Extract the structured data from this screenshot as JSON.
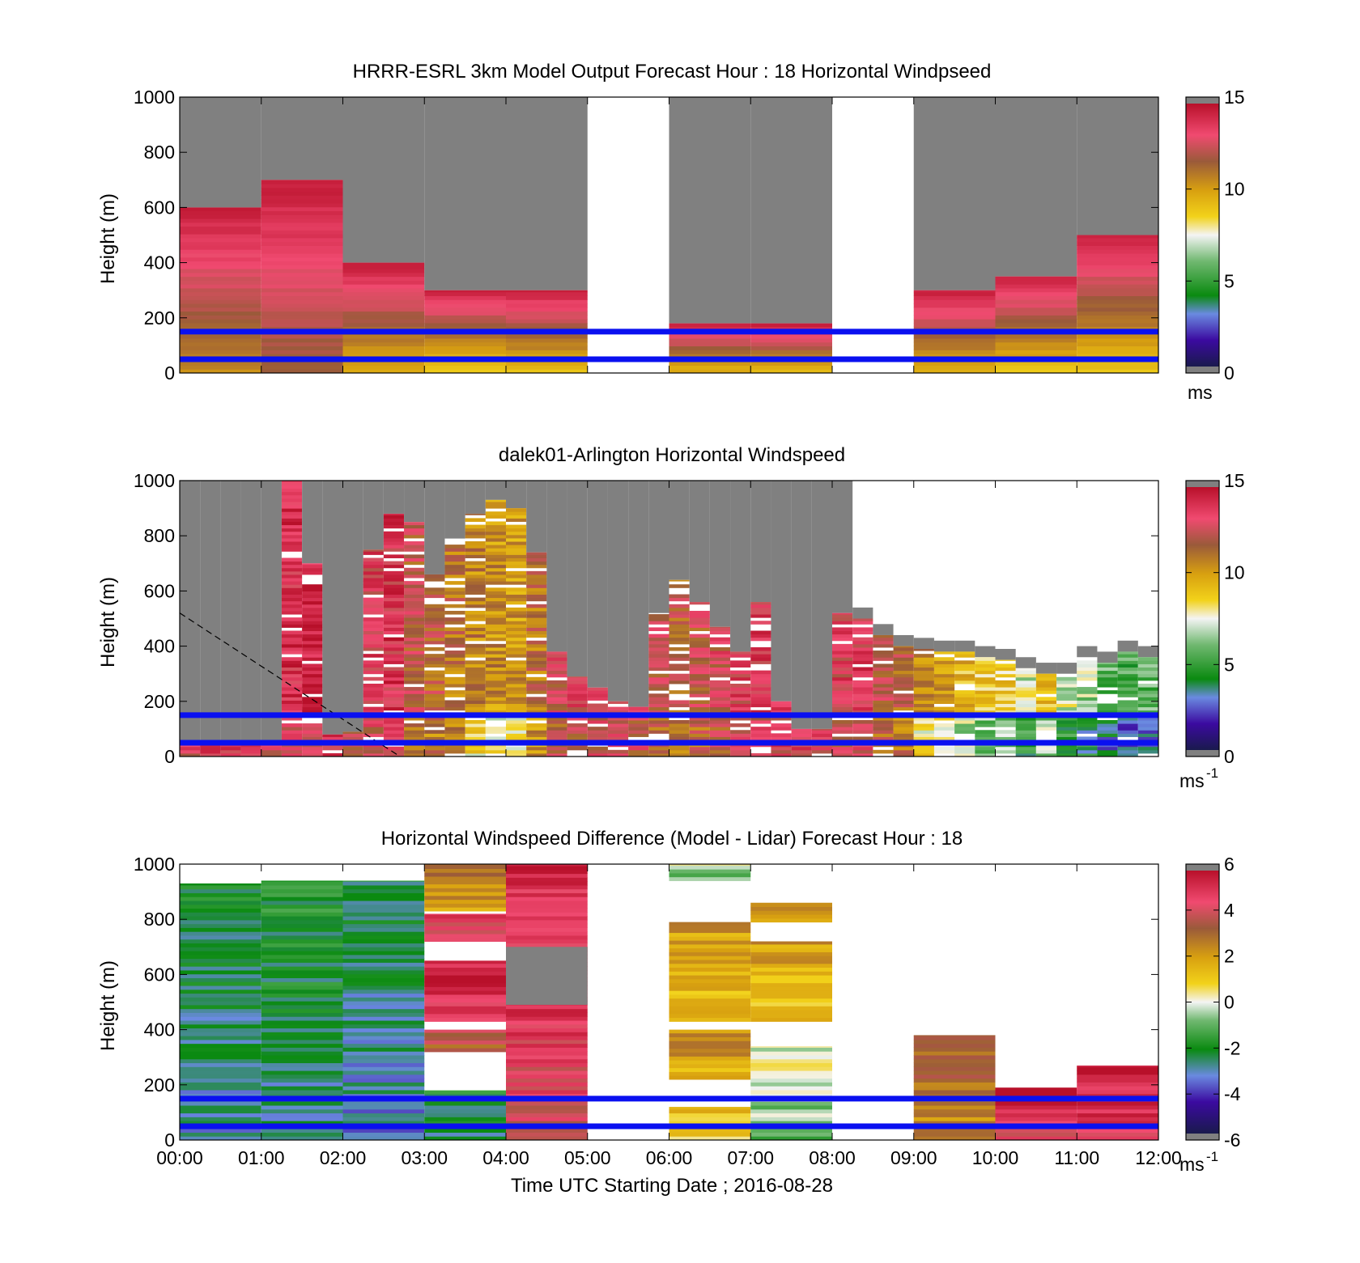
{
  "chart_data": [
    {
      "type": "heatmap",
      "title": "HRRR-ESRL 3km Model Output   Forecast Hour : 18 Horizontal Windpseed",
      "ylabel": "Height (m)",
      "ylim": [
        0,
        1000
      ],
      "yticks": [
        "0",
        "200",
        "400",
        "600",
        "800",
        "1000"
      ],
      "x_range_hours": [
        0,
        12
      ],
      "colorbar": {
        "min": 0,
        "max": 15,
        "ticks": [
          "0",
          "5",
          "10",
          "15"
        ],
        "unit_base": "ms",
        "unit_exp": "",
        "colormap": "windspeed"
      },
      "reference_lines_m": [
        50,
        150
      ],
      "columns": [
        {
          "start": 0,
          "end": 1,
          "top": 600,
          "surface": 10.5
        },
        {
          "start": 1,
          "end": 2,
          "top": 700,
          "surface": 11.5
        },
        {
          "start": 2,
          "end": 3,
          "top": 400,
          "surface": 9.5
        },
        {
          "start": 3,
          "end": 4,
          "top": 300,
          "surface": 8.5
        },
        {
          "start": 4,
          "end": 5,
          "top": 300,
          "surface": 9.0
        },
        {
          "start": 6,
          "end": 7,
          "top": 180,
          "surface": 9.5
        },
        {
          "start": 7,
          "end": 8,
          "top": 180,
          "surface": 9.5
        },
        {
          "start": 9,
          "end": 10,
          "top": 300,
          "surface": 9.5
        },
        {
          "start": 10,
          "end": 11,
          "top": 350,
          "surface": 9.0
        },
        {
          "start": 11,
          "end": 12,
          "top": 500,
          "surface": 9.0
        }
      ],
      "gaps": [
        [
          5,
          6
        ],
        [
          8,
          9
        ]
      ]
    },
    {
      "type": "heatmap",
      "title": "dalek01-Arlington  Horizontal Windspeed",
      "ylabel": "Height (m)",
      "ylim": [
        0,
        1000
      ],
      "yticks": [
        "0",
        "200",
        "400",
        "600",
        "800",
        "1000"
      ],
      "x_range_hours": [
        0,
        12
      ],
      "colorbar": {
        "min": 0,
        "max": 15,
        "ticks": [
          "0",
          "5",
          "10",
          "15"
        ],
        "unit_base": "ms",
        "unit_exp": "-1",
        "colormap": "windspeed"
      },
      "reference_lines_m": [
        50,
        150
      ],
      "dashed_line": {
        "x": [
          0,
          2.7
        ],
        "y": [
          520,
          0
        ]
      },
      "columns": [
        {
          "t": 0.25,
          "top": 60,
          "v": 13.5
        },
        {
          "t": 0.5,
          "top": 60,
          "v": 13.8
        },
        {
          "t": 0.75,
          "top": 40,
          "v": 14.0
        },
        {
          "t": 1.0,
          "top": 40,
          "v": 13.5
        },
        {
          "t": 1.25,
          "top": 40,
          "v": 13.0
        },
        {
          "t": 1.5,
          "top": 1000,
          "v": 13.8
        },
        {
          "t": 1.75,
          "top": 700,
          "v": 14.0
        },
        {
          "t": 2.0,
          "top": 80,
          "v": 14.2
        },
        {
          "t": 2.25,
          "top": 90,
          "v": 13.0
        },
        {
          "t": 2.5,
          "top": 750,
          "v": 13.2
        },
        {
          "t": 2.75,
          "top": 880,
          "v": 13.5
        },
        {
          "t": 3.0,
          "top": 850,
          "v": 12.0
        },
        {
          "t": 3.25,
          "top": 660,
          "v": 11.5
        },
        {
          "t": 3.5,
          "top": 790,
          "v": 11.0
        },
        {
          "t": 3.75,
          "top": 880,
          "v": 10.5
        },
        {
          "t": 4.0,
          "top": 930,
          "v": 10.2
        },
        {
          "t": 4.25,
          "top": 900,
          "v": 10.0
        },
        {
          "t": 4.5,
          "top": 740,
          "v": 11.0
        },
        {
          "t": 4.75,
          "top": 380,
          "v": 12.5
        },
        {
          "t": 5.0,
          "top": 290,
          "v": 12.8
        },
        {
          "t": 5.25,
          "top": 250,
          "v": 13.2
        },
        {
          "t": 5.5,
          "top": 200,
          "v": 13.5
        },
        {
          "t": 5.75,
          "top": 180,
          "v": 13.0
        },
        {
          "t": 6.0,
          "top": 520,
          "v": 12.0
        },
        {
          "t": 6.25,
          "top": 640,
          "v": 11.5
        },
        {
          "t": 6.5,
          "top": 560,
          "v": 12.0
        },
        {
          "t": 6.75,
          "top": 470,
          "v": 12.5
        },
        {
          "t": 7.0,
          "top": 380,
          "v": 13.2
        },
        {
          "t": 7.25,
          "top": 560,
          "v": 13.5
        },
        {
          "t": 7.5,
          "top": 200,
          "v": 13.8
        },
        {
          "t": 7.75,
          "top": 100,
          "v": 14.0
        },
        {
          "t": 8.0,
          "top": 100,
          "v": 13.5
        },
        {
          "t": 8.25,
          "top": 520,
          "v": 13.0
        },
        {
          "t": 8.5,
          "top": 500,
          "v": 13.2
        },
        {
          "t": 8.75,
          "top": 440,
          "v": 12.0
        },
        {
          "t": 9.0,
          "top": 400,
          "v": 11.5
        },
        {
          "t": 9.25,
          "top": 390,
          "v": 10.5
        },
        {
          "t": 9.5,
          "top": 380,
          "v": 10.0
        },
        {
          "t": 9.75,
          "top": 380,
          "v": 9.0
        },
        {
          "t": 10.0,
          "top": 360,
          "v": 8.5
        },
        {
          "t": 10.25,
          "top": 350,
          "v": 8.5
        },
        {
          "t": 10.5,
          "top": 320,
          "v": 7.0
        },
        {
          "t": 10.75,
          "top": 300,
          "v": 8.8
        },
        {
          "t": 11.0,
          "top": 300,
          "v": 7.0
        },
        {
          "t": 11.25,
          "top": 360,
          "v": 6.5
        },
        {
          "t": 11.5,
          "top": 340,
          "v": 5.5
        },
        {
          "t": 11.75,
          "top": 380,
          "v": 5.0
        },
        {
          "t": 12.0,
          "top": 360,
          "v": 5.5
        }
      ]
    },
    {
      "type": "heatmap",
      "title": "Horizontal Windspeed Difference (Model - Lidar) Forecast Hour : 18",
      "ylabel": "Height (m)",
      "xlabel": "Time UTC  Starting Date ; 2016-08-28",
      "ylim": [
        0,
        1000
      ],
      "yticks": [
        "0",
        "200",
        "400",
        "600",
        "800",
        "1000"
      ],
      "xticks": [
        "00:00",
        "01:00",
        "02:00",
        "03:00",
        "04:00",
        "05:00",
        "06:00",
        "07:00",
        "08:00",
        "09:00",
        "10:00",
        "11:00",
        "12:00"
      ],
      "x_range_hours": [
        0,
        12
      ],
      "colorbar": {
        "min": -6,
        "max": 6,
        "ticks": [
          "-6",
          "-4",
          "-2",
          "0",
          "2",
          "4",
          "6"
        ],
        "unit_base": "ms",
        "unit_exp": "-1",
        "colormap": "difference"
      },
      "reference_lines_m": [
        50,
        150
      ],
      "segments": [
        {
          "start": 0,
          "end": 1,
          "bottom": 0,
          "top": 930,
          "v": -2.8
        },
        {
          "start": 1,
          "end": 2,
          "bottom": 0,
          "top": 940,
          "v": -2.5
        },
        {
          "start": 2,
          "end": 3,
          "bottom": 0,
          "top": 940,
          "v": -3.0
        },
        {
          "start": 3,
          "end": 4,
          "bottom": 0,
          "top": 180,
          "v": -2.5
        },
        {
          "start": 3,
          "end": 4,
          "bottom": 320,
          "top": 400,
          "v": 3.5
        },
        {
          "start": 3,
          "end": 4,
          "bottom": 430,
          "top": 650,
          "v": 5.0
        },
        {
          "start": 3,
          "end": 4,
          "bottom": 720,
          "top": 820,
          "v": 4.5
        },
        {
          "start": 3,
          "end": 4,
          "bottom": 830,
          "top": 1000,
          "v": 2.5
        },
        {
          "start": 4,
          "end": 5,
          "bottom": 0,
          "top": 490,
          "v": 4.5
        },
        {
          "start": 4,
          "end": 5,
          "bottom": 490,
          "top": 700,
          "v": 6.0
        },
        {
          "start": 4,
          "end": 5,
          "bottom": 700,
          "top": 1000,
          "v": 5.0
        },
        {
          "start": 6,
          "end": 7,
          "bottom": 0,
          "top": 120,
          "v": 1.0
        },
        {
          "start": 6,
          "end": 7,
          "bottom": 220,
          "top": 400,
          "v": 2.0
        },
        {
          "start": 6,
          "end": 7,
          "bottom": 430,
          "top": 790,
          "v": 1.5
        },
        {
          "start": 6,
          "end": 7,
          "bottom": 940,
          "top": 1000,
          "v": -0.5
        },
        {
          "start": 7,
          "end": 8,
          "bottom": 0,
          "top": 340,
          "v": -0.5
        },
        {
          "start": 7,
          "end": 8,
          "bottom": 430,
          "top": 720,
          "v": 1.5
        },
        {
          "start": 7,
          "end": 8,
          "bottom": 790,
          "top": 860,
          "v": 2.0
        },
        {
          "start": 9,
          "end": 10,
          "bottom": 0,
          "top": 380,
          "v": 2.8
        },
        {
          "start": 10,
          "end": 11,
          "bottom": 0,
          "top": 190,
          "v": 5.0
        },
        {
          "start": 11,
          "end": 12,
          "bottom": 0,
          "top": 270,
          "v": 5.2
        }
      ]
    }
  ]
}
